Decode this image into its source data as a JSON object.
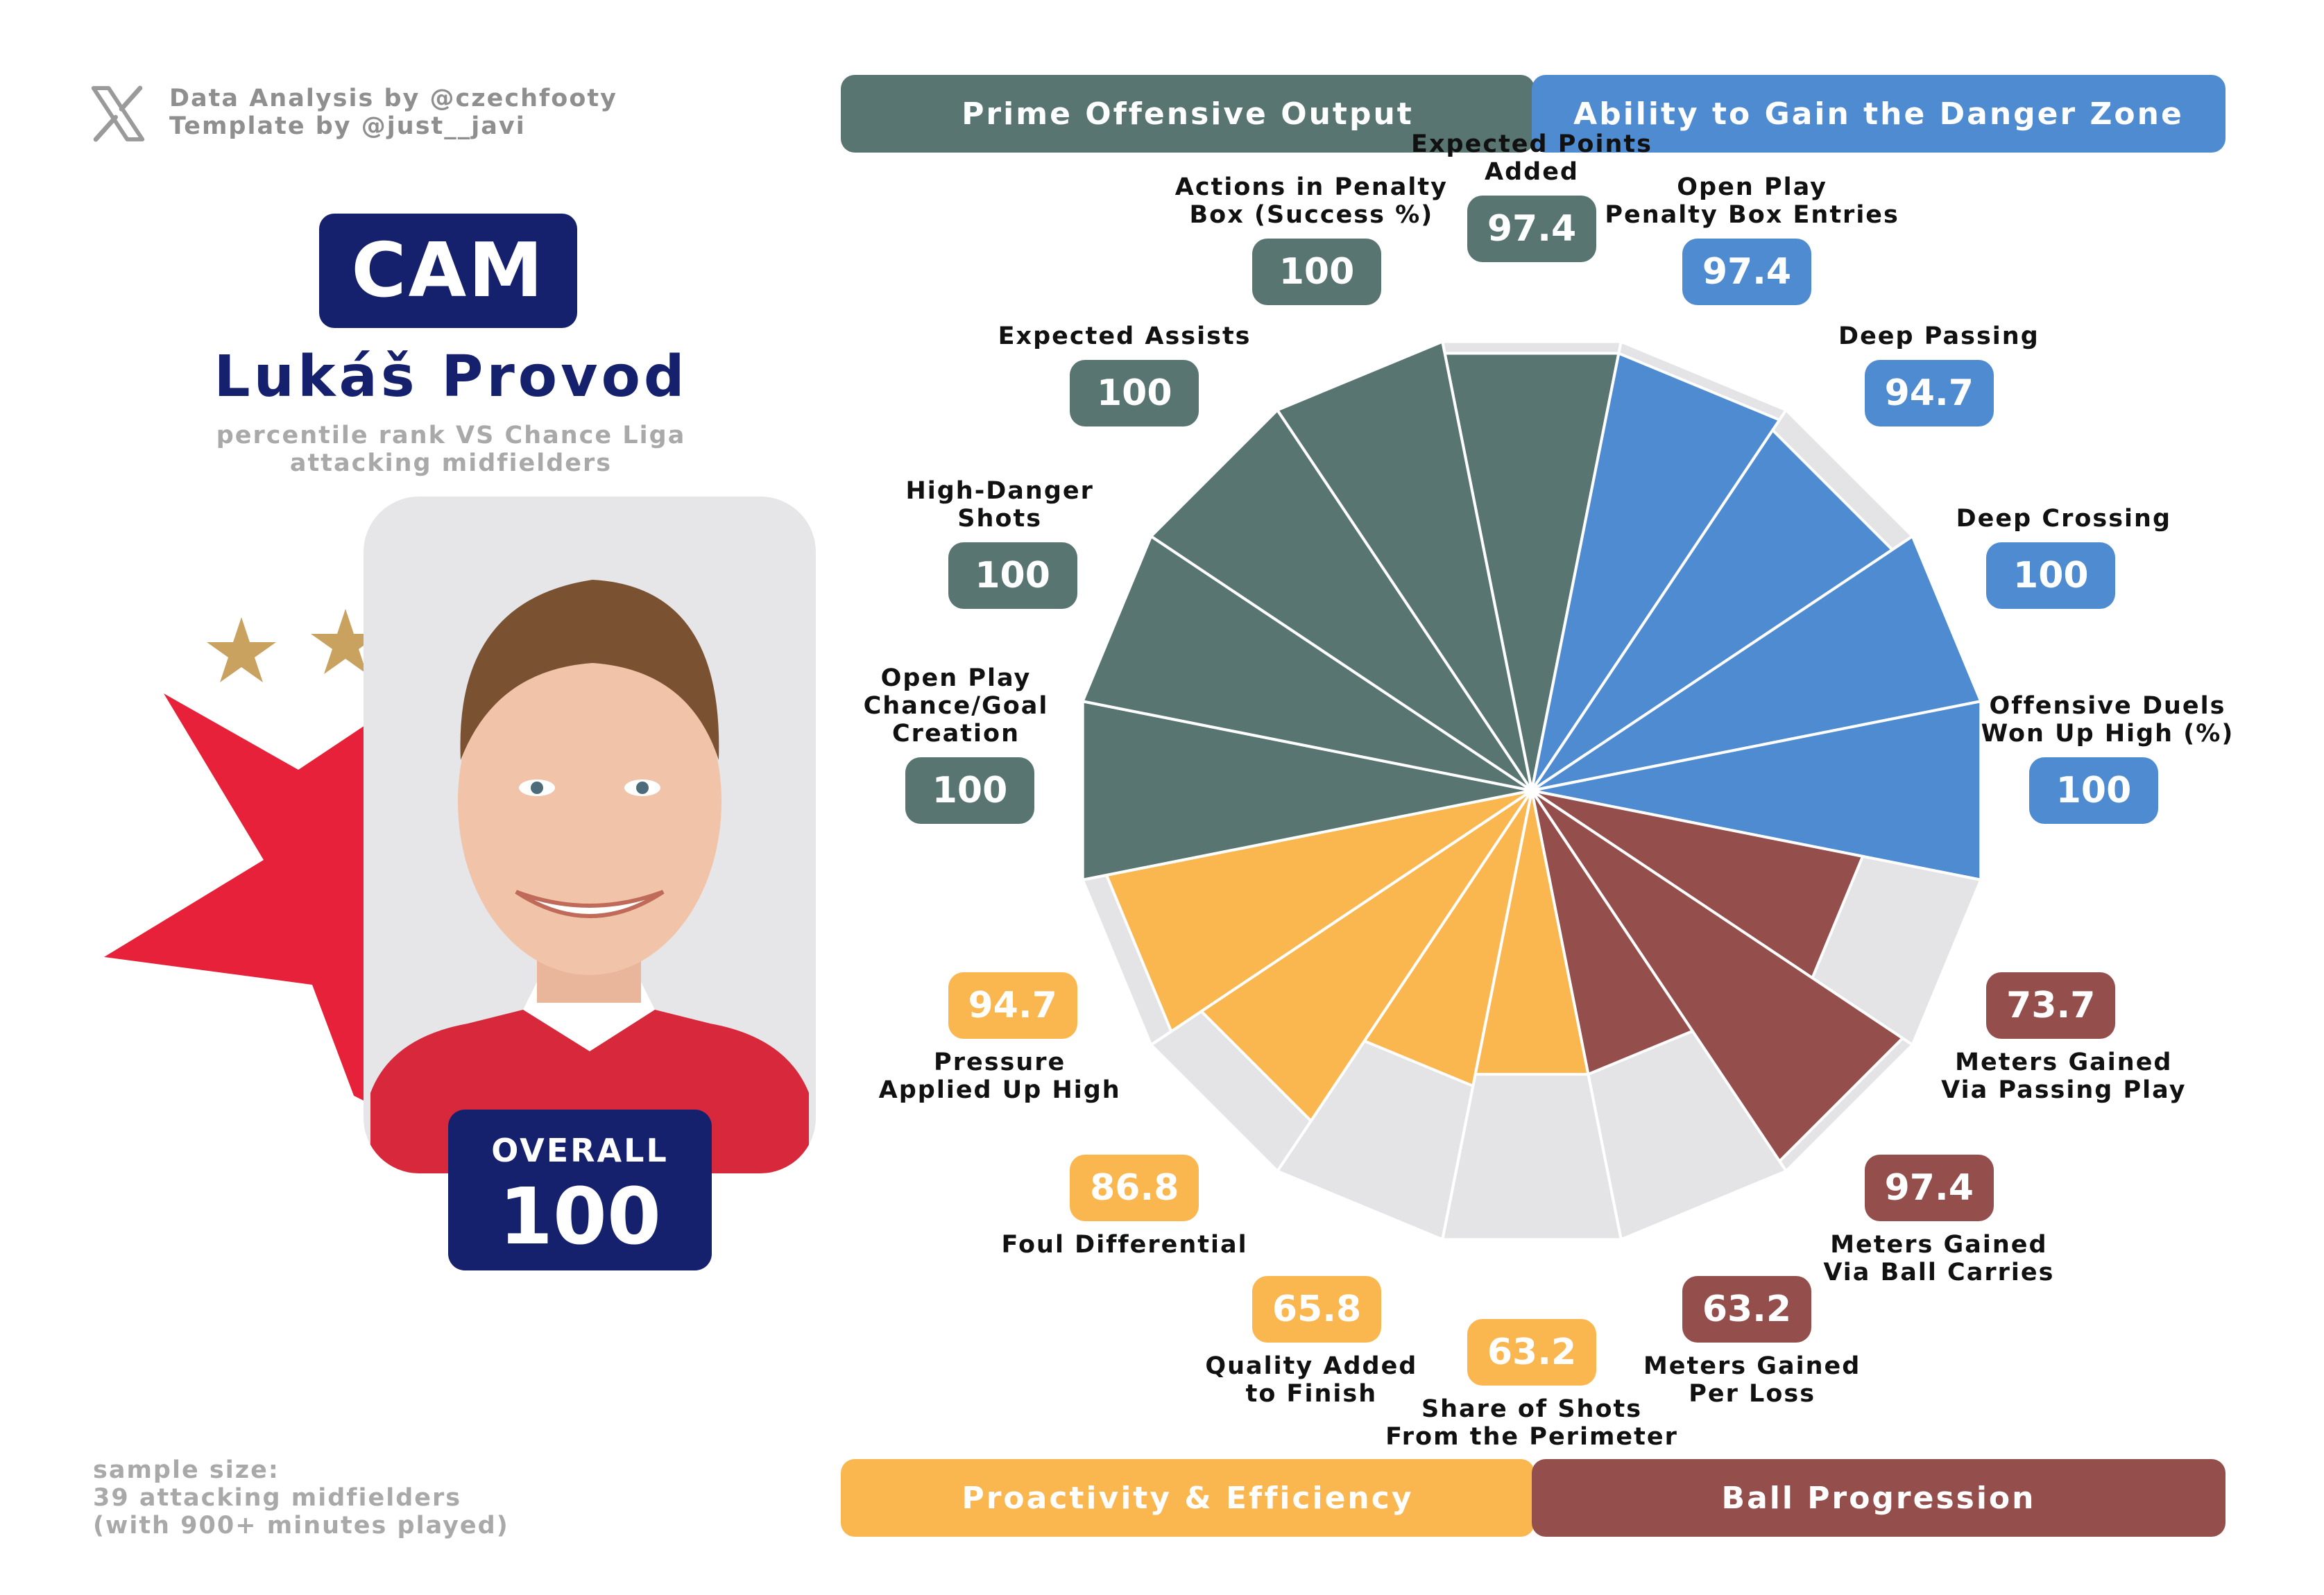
{
  "credits": {
    "line1": "Data Analysis by @czechfooty",
    "line2": "Template by @just__javi"
  },
  "player": {
    "position": "CAM",
    "name": "Lukáš Provod",
    "subtitle_line1": "percentile rank VS Chance Liga",
    "subtitle_line2": "attacking midfielders",
    "overall_label": "OVERALL",
    "overall_value": "100"
  },
  "sample": {
    "line1": "sample size:",
    "line2": "39 attacking midfielders",
    "line3": "(with 900+ minutes played)"
  },
  "groups": {
    "offensive": "Prime Offensive Output",
    "danger": "Ability to Gain the Danger Zone",
    "proactivity": "Proactivity & Efficiency",
    "progression": "Ball Progression"
  },
  "colors": {
    "offensive": "#587571",
    "danger": "#4f8bd1",
    "proactivity": "#fbb74f",
    "progression": "#944f4c",
    "background_wedge": "#e4e4e6",
    "navy": "#16216e",
    "club_red": "#e8213a",
    "club_gold": "#c9a260"
  },
  "chart_data": {
    "type": "radar-bar",
    "scale": [
      0,
      100
    ],
    "metrics": [
      {
        "label": [
          "Expected Points",
          "Added"
        ],
        "value": 97.4,
        "value_label": "97.4",
        "group": "offensive"
      },
      {
        "label": [
          "Open Play",
          "Penalty Box Entries"
        ],
        "value": 97.4,
        "value_label": "97.4",
        "group": "danger"
      },
      {
        "label": [
          "Deep Passing"
        ],
        "value": 94.7,
        "value_label": "94.7",
        "group": "danger"
      },
      {
        "label": [
          "Deep Crossing"
        ],
        "value": 100,
        "value_label": "100",
        "group": "danger"
      },
      {
        "label": [
          "Offensive Duels",
          "Won Up High (%)"
        ],
        "value": 100,
        "value_label": "100",
        "group": "danger"
      },
      {
        "label": [
          "Meters Gained",
          "Via Passing Play"
        ],
        "value": 73.7,
        "value_label": "73.7",
        "group": "progression"
      },
      {
        "label": [
          "Meters Gained",
          "Via Ball Carries"
        ],
        "value": 97.4,
        "value_label": "97.4",
        "group": "progression"
      },
      {
        "label": [
          "Meters Gained",
          "Per Loss"
        ],
        "value": 63.2,
        "value_label": "63.2",
        "group": "progression"
      },
      {
        "label": [
          "Share of Shots",
          "From the Perimeter"
        ],
        "value": 63.2,
        "value_label": "63.2",
        "group": "proactivity"
      },
      {
        "label": [
          "Quality Added",
          "to Finish"
        ],
        "value": 65.8,
        "value_label": "65.8",
        "group": "proactivity"
      },
      {
        "label": [
          "Foul Differential"
        ],
        "value": 86.8,
        "value_label": "86.8",
        "group": "proactivity"
      },
      {
        "label": [
          "Pressure",
          "Applied Up High"
        ],
        "value": 94.7,
        "value_label": "94.7",
        "group": "proactivity"
      },
      {
        "label": [
          "Open Play",
          "Chance/Goal",
          "Creation"
        ],
        "value": 100,
        "value_label": "100",
        "group": "offensive"
      },
      {
        "label": [
          "High-Danger",
          "Shots"
        ],
        "value": 100,
        "value_label": "100",
        "group": "offensive"
      },
      {
        "label": [
          "Expected Assists"
        ],
        "value": 100,
        "value_label": "100",
        "group": "offensive"
      },
      {
        "label": [
          "Actions in Penalty",
          "Box (Success %)"
        ],
        "value": 100,
        "value_label": "100",
        "group": "offensive"
      }
    ]
  }
}
